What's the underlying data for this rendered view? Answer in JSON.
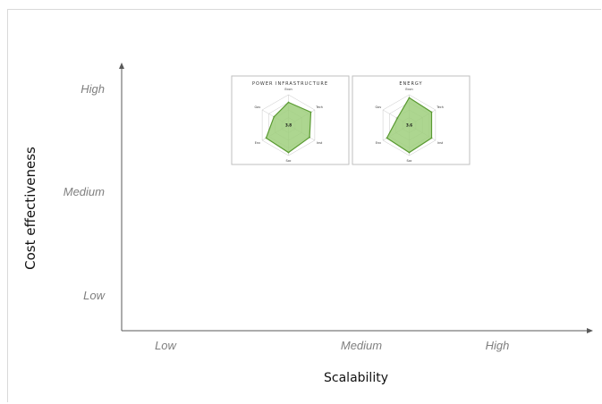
{
  "chart_data": {
    "type": "scatter",
    "xlabel": "Scalability",
    "ylabel": "Cost effectiveness",
    "x_ticks": [
      "Low",
      "Medium",
      "High"
    ],
    "y_ticks": [
      "High",
      "Medium",
      "Low"
    ],
    "colors": {
      "fill": "#9fcf7c",
      "stroke": "#5a9a32",
      "grid": "#c8c8c8",
      "tick": "#7f7f7f",
      "axis": "#595959"
    },
    "panels": [
      {
        "title": "POWER INFRASTRUCTURE",
        "center_label": "3.8",
        "axes": [
          "Econ",
          "Tech",
          "Inst",
          "Soc",
          "Env",
          "Gov"
        ],
        "values": [
          3,
          3.4,
          3.2,
          3.6,
          3.4,
          2.2
        ],
        "scale_max": 4,
        "x": "Medium",
        "y": "High"
      },
      {
        "title": "ENERGY",
        "center_label": "3.6",
        "axes": [
          "Econ",
          "Tech",
          "Inst",
          "Soc",
          "Env",
          "Gov"
        ],
        "values": [
          3.6,
          3.4,
          3.4,
          3.6,
          3.4,
          1.8
        ],
        "scale_max": 4,
        "x": "Medium",
        "y": "High"
      }
    ]
  }
}
